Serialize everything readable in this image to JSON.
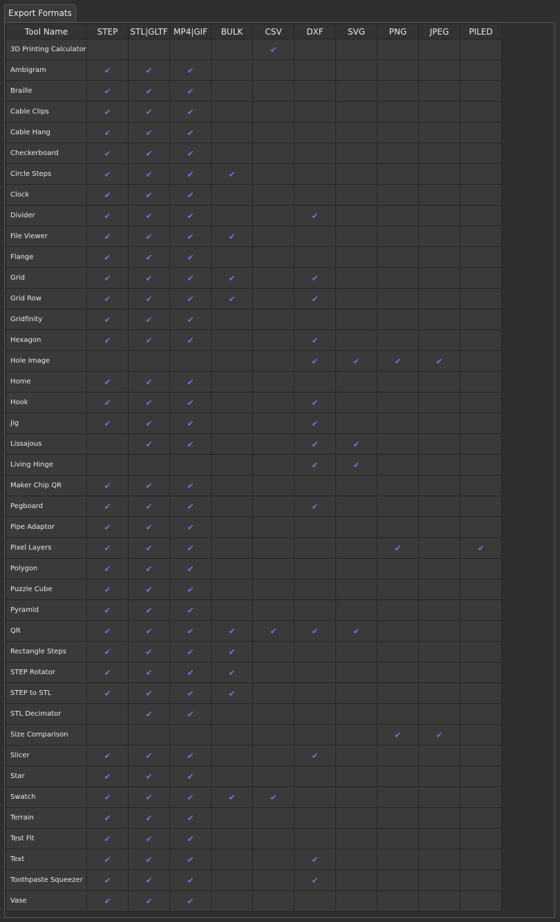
{
  "tab": {
    "label": "Export Formats"
  },
  "table": {
    "headers": [
      "Tool Name",
      "STEP",
      "STL|GLTF",
      "MP4|GIF",
      "BULK",
      "CSV",
      "DXF",
      "SVG",
      "PNG",
      "JPEG",
      "PILED"
    ],
    "rows": [
      {
        "name": "3D Printing Calculator",
        "formats": [
          0,
          0,
          0,
          0,
          1,
          0,
          0,
          0,
          0,
          0
        ]
      },
      {
        "name": "Ambigram",
        "formats": [
          1,
          1,
          1,
          0,
          0,
          0,
          0,
          0,
          0,
          0
        ]
      },
      {
        "name": "Braille",
        "formats": [
          1,
          1,
          1,
          0,
          0,
          0,
          0,
          0,
          0,
          0
        ]
      },
      {
        "name": "Cable Clips",
        "formats": [
          1,
          1,
          1,
          0,
          0,
          0,
          0,
          0,
          0,
          0
        ]
      },
      {
        "name": "Cable Hang",
        "formats": [
          1,
          1,
          1,
          0,
          0,
          0,
          0,
          0,
          0,
          0
        ]
      },
      {
        "name": "Checkerboard",
        "formats": [
          1,
          1,
          1,
          0,
          0,
          0,
          0,
          0,
          0,
          0
        ]
      },
      {
        "name": "Circle Steps",
        "formats": [
          1,
          1,
          1,
          1,
          0,
          0,
          0,
          0,
          0,
          0
        ]
      },
      {
        "name": "Clock",
        "formats": [
          1,
          1,
          1,
          0,
          0,
          0,
          0,
          0,
          0,
          0
        ]
      },
      {
        "name": "Divider",
        "formats": [
          1,
          1,
          1,
          0,
          0,
          1,
          0,
          0,
          0,
          0
        ]
      },
      {
        "name": "File Viewer",
        "formats": [
          1,
          1,
          1,
          1,
          0,
          0,
          0,
          0,
          0,
          0
        ]
      },
      {
        "name": "Flange",
        "formats": [
          1,
          1,
          1,
          0,
          0,
          0,
          0,
          0,
          0,
          0
        ]
      },
      {
        "name": "Grid",
        "formats": [
          1,
          1,
          1,
          1,
          0,
          1,
          0,
          0,
          0,
          0
        ]
      },
      {
        "name": "Grid Row",
        "formats": [
          1,
          1,
          1,
          1,
          0,
          1,
          0,
          0,
          0,
          0
        ]
      },
      {
        "name": "Gridfinity",
        "formats": [
          1,
          1,
          1,
          0,
          0,
          0,
          0,
          0,
          0,
          0
        ]
      },
      {
        "name": "Hexagon",
        "formats": [
          1,
          1,
          1,
          0,
          0,
          1,
          0,
          0,
          0,
          0
        ]
      },
      {
        "name": "Hole Image",
        "formats": [
          0,
          0,
          0,
          0,
          0,
          1,
          1,
          1,
          1,
          0
        ]
      },
      {
        "name": "Home",
        "formats": [
          1,
          1,
          1,
          0,
          0,
          0,
          0,
          0,
          0,
          0
        ]
      },
      {
        "name": "Hook",
        "formats": [
          1,
          1,
          1,
          0,
          0,
          1,
          0,
          0,
          0,
          0
        ]
      },
      {
        "name": "Jig",
        "formats": [
          1,
          1,
          1,
          0,
          0,
          1,
          0,
          0,
          0,
          0
        ]
      },
      {
        "name": "Lissajous",
        "formats": [
          0,
          1,
          1,
          0,
          0,
          1,
          1,
          0,
          0,
          0
        ]
      },
      {
        "name": "Living Hinge",
        "formats": [
          0,
          0,
          0,
          0,
          0,
          1,
          1,
          0,
          0,
          0
        ]
      },
      {
        "name": "Maker Chip QR",
        "formats": [
          1,
          1,
          1,
          0,
          0,
          0,
          0,
          0,
          0,
          0
        ]
      },
      {
        "name": "Pegboard",
        "formats": [
          1,
          1,
          1,
          0,
          0,
          1,
          0,
          0,
          0,
          0
        ]
      },
      {
        "name": "Pipe Adaptor",
        "formats": [
          1,
          1,
          1,
          0,
          0,
          0,
          0,
          0,
          0,
          0
        ]
      },
      {
        "name": "Pixel Layers",
        "formats": [
          1,
          1,
          1,
          0,
          0,
          0,
          0,
          1,
          0,
          1
        ]
      },
      {
        "name": "Polygon",
        "formats": [
          1,
          1,
          1,
          0,
          0,
          0,
          0,
          0,
          0,
          0
        ]
      },
      {
        "name": "Puzzle Cube",
        "formats": [
          1,
          1,
          1,
          0,
          0,
          0,
          0,
          0,
          0,
          0
        ]
      },
      {
        "name": "Pyramid",
        "formats": [
          1,
          1,
          1,
          0,
          0,
          0,
          0,
          0,
          0,
          0
        ]
      },
      {
        "name": "QR",
        "formats": [
          1,
          1,
          1,
          1,
          1,
          1,
          1,
          0,
          0,
          0
        ]
      },
      {
        "name": "Rectangle Steps",
        "formats": [
          1,
          1,
          1,
          1,
          0,
          0,
          0,
          0,
          0,
          0
        ]
      },
      {
        "name": "STEP Rotator",
        "formats": [
          1,
          1,
          1,
          1,
          0,
          0,
          0,
          0,
          0,
          0
        ]
      },
      {
        "name": "STEP to STL",
        "formats": [
          1,
          1,
          1,
          1,
          0,
          0,
          0,
          0,
          0,
          0
        ]
      },
      {
        "name": "STL Decimator",
        "formats": [
          0,
          1,
          1,
          0,
          0,
          0,
          0,
          0,
          0,
          0
        ]
      },
      {
        "name": "Size Comparison",
        "formats": [
          0,
          0,
          0,
          0,
          0,
          0,
          0,
          1,
          1,
          0
        ]
      },
      {
        "name": "Slicer",
        "formats": [
          1,
          1,
          1,
          0,
          0,
          1,
          0,
          0,
          0,
          0
        ]
      },
      {
        "name": "Star",
        "formats": [
          1,
          1,
          1,
          0,
          0,
          0,
          0,
          0,
          0,
          0
        ]
      },
      {
        "name": "Swatch",
        "formats": [
          1,
          1,
          1,
          1,
          1,
          0,
          0,
          0,
          0,
          0
        ]
      },
      {
        "name": "Terrain",
        "formats": [
          1,
          1,
          1,
          0,
          0,
          0,
          0,
          0,
          0,
          0
        ]
      },
      {
        "name": "Test Fit",
        "formats": [
          1,
          1,
          1,
          0,
          0,
          0,
          0,
          0,
          0,
          0
        ]
      },
      {
        "name": "Text",
        "formats": [
          1,
          1,
          1,
          0,
          0,
          1,
          0,
          0,
          0,
          0
        ]
      },
      {
        "name": "Toothpaste Squeezer",
        "formats": [
          1,
          1,
          1,
          0,
          0,
          1,
          0,
          0,
          0,
          0
        ]
      },
      {
        "name": "Vase",
        "formats": [
          1,
          1,
          1,
          0,
          0,
          0,
          0,
          0,
          0,
          0
        ]
      }
    ],
    "check_icon": "checkmark-icon",
    "check_glyph": "✔",
    "colors": {
      "check": "#7b6fd8",
      "cell_bg": "#3a3a3a",
      "panel_bg": "#2f2f2f"
    }
  }
}
